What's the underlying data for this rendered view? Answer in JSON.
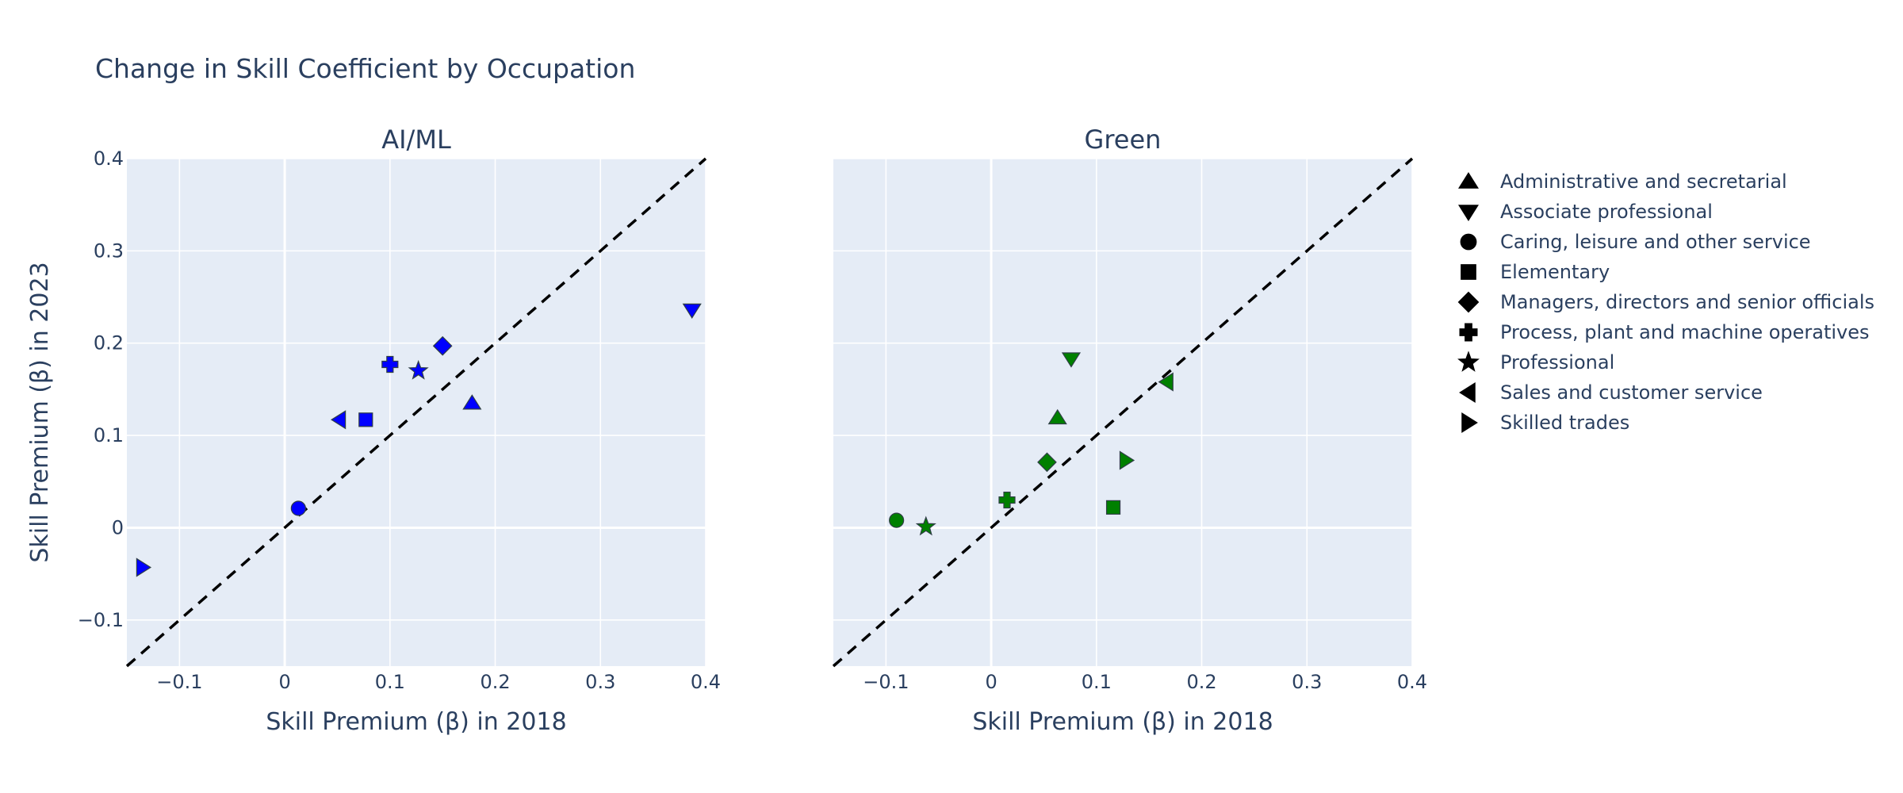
{
  "chart_data": {
    "type": "scatter",
    "title": "Change in Skill Coefficient by Occupation",
    "xlabel": "Skill Premium (β) in 2018",
    "ylabel": "Skill Premium (β) in 2023",
    "xlim": [
      -0.15,
      0.4
    ],
    "ylim": [
      -0.15,
      0.4
    ],
    "x_ticks": [
      -0.1,
      0,
      0.1,
      0.2,
      0.3,
      0.4
    ],
    "y_ticks": [
      -0.1,
      0,
      0.1,
      0.2,
      0.3,
      0.4
    ],
    "x_tick_labels": [
      "−0.1",
      "0",
      "0.1",
      "0.2",
      "0.3",
      "0.4"
    ],
    "y_tick_labels": [
      "−0.1",
      "0",
      "0.1",
      "0.2",
      "0.3",
      "0.4"
    ],
    "grid": true,
    "reference_line": "y = x (dashed black)",
    "legend_position": "right",
    "categories": [
      {
        "name": "Administrative and secretarial",
        "symbol": "triangle-up"
      },
      {
        "name": "Associate professional",
        "symbol": "triangle-down"
      },
      {
        "name": "Caring, leisure and other service",
        "symbol": "circle"
      },
      {
        "name": "Elementary",
        "symbol": "square"
      },
      {
        "name": "Managers, directors and senior officials",
        "symbol": "diamond"
      },
      {
        "name": "Process, plant and machine operatives",
        "symbol": "cross"
      },
      {
        "name": "Professional",
        "symbol": "star"
      },
      {
        "name": "Sales and customer service",
        "symbol": "triangle-left"
      },
      {
        "name": "Skilled trades",
        "symbol": "triangle-right"
      }
    ],
    "panels": [
      {
        "subtitle": "AI/ML",
        "color": "#0000ff",
        "points": [
          {
            "category": "Administrative and secretarial",
            "x": 0.178,
            "y": 0.135
          },
          {
            "category": "Associate professional",
            "x": 0.387,
            "y": 0.236
          },
          {
            "category": "Caring, leisure and other service",
            "x": 0.013,
            "y": 0.021
          },
          {
            "category": "Elementary",
            "x": 0.077,
            "y": 0.117
          },
          {
            "category": "Managers, directors and senior officials",
            "x": 0.15,
            "y": 0.197
          },
          {
            "category": "Process, plant and machine operatives",
            "x": 0.1,
            "y": 0.177
          },
          {
            "category": "Professional",
            "x": 0.127,
            "y": 0.17
          },
          {
            "category": "Sales and customer service",
            "x": 0.052,
            "y": 0.117
          },
          {
            "category": "Skilled trades",
            "x": -0.135,
            "y": -0.043
          }
        ]
      },
      {
        "subtitle": "Green",
        "color": "#008000",
        "points": [
          {
            "category": "Administrative and secretarial",
            "x": 0.063,
            "y": 0.119
          },
          {
            "category": "Associate professional",
            "x": 0.076,
            "y": 0.183
          },
          {
            "category": "Caring, leisure and other service",
            "x": -0.09,
            "y": 0.008
          },
          {
            "category": "Elementary",
            "x": 0.116,
            "y": 0.022
          },
          {
            "category": "Managers, directors and senior officials",
            "x": 0.053,
            "y": 0.071
          },
          {
            "category": "Process, plant and machine operatives",
            "x": 0.015,
            "y": 0.03
          },
          {
            "category": "Professional",
            "x": -0.062,
            "y": 0.001
          },
          {
            "category": "Sales and customer service",
            "x": 0.167,
            "y": 0.158
          },
          {
            "category": "Skilled trades",
            "x": 0.128,
            "y": 0.073
          }
        ]
      }
    ]
  }
}
